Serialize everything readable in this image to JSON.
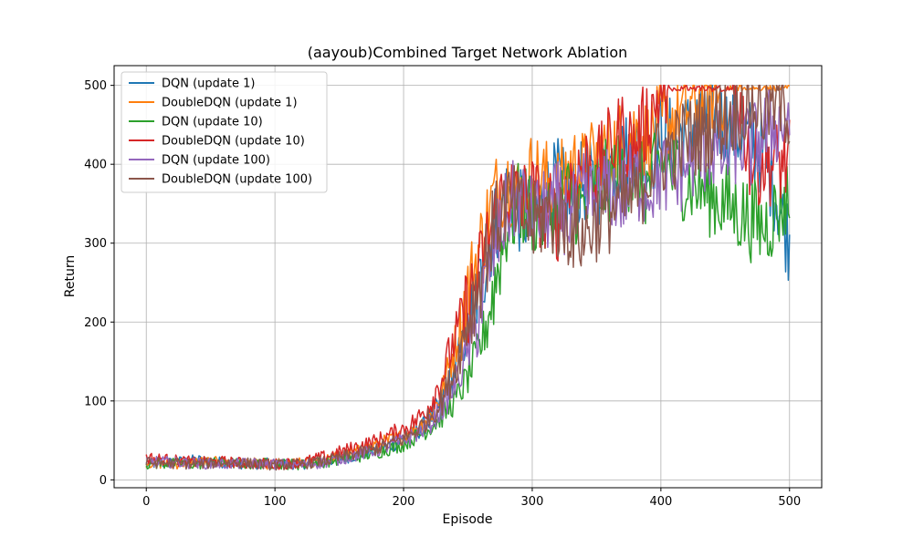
{
  "chart_data": {
    "type": "line",
    "title": "(aayoub)Combined Target Network Ablation",
    "xlabel": "Episode",
    "ylabel": "Return",
    "xlim": [
      -25,
      525
    ],
    "ylim": [
      -10,
      525
    ],
    "xticks": [
      0,
      100,
      200,
      300,
      400,
      500
    ],
    "yticks": [
      0,
      100,
      200,
      300,
      400,
      500
    ],
    "grid": true,
    "legend_position": "top-left",
    "series": [
      {
        "name": "DQN (update 1)",
        "color": "#1f77b4",
        "x": [
          0,
          20,
          40,
          60,
          80,
          100,
          120,
          140,
          160,
          180,
          200,
          210,
          220,
          230,
          240,
          250,
          260,
          270,
          280,
          290,
          300,
          310,
          320,
          330,
          340,
          350,
          360,
          370,
          380,
          390,
          400,
          410,
          420,
          430,
          440,
          450,
          460,
          470,
          480,
          490,
          500
        ],
        "values": [
          20,
          22,
          25,
          22,
          20,
          21,
          20,
          24,
          30,
          38,
          50,
          60,
          75,
          100,
          140,
          190,
          250,
          320,
          360,
          340,
          330,
          360,
          380,
          350,
          380,
          370,
          400,
          410,
          420,
          400,
          440,
          430,
          440,
          450,
          460,
          450,
          440,
          430,
          410,
          360,
          300
        ]
      },
      {
        "name": "DoubleDQN (update 1)",
        "color": "#ff7f0e",
        "x": [
          0,
          20,
          40,
          60,
          80,
          100,
          120,
          140,
          160,
          180,
          200,
          210,
          220,
          230,
          240,
          250,
          260,
          270,
          280,
          290,
          300,
          310,
          320,
          330,
          340,
          350,
          360,
          370,
          380,
          390,
          400,
          410,
          420,
          430,
          440,
          450,
          460,
          470,
          480,
          490,
          500
        ],
        "values": [
          22,
          20,
          23,
          22,
          21,
          20,
          21,
          25,
          34,
          45,
          55,
          65,
          80,
          110,
          170,
          240,
          300,
          360,
          380,
          360,
          390,
          380,
          370,
          400,
          390,
          410,
          420,
          430,
          440,
          430,
          450,
          460,
          470,
          480,
          490,
          495,
          500,
          500,
          500,
          500,
          500
        ]
      },
      {
        "name": "DQN (update 10)",
        "color": "#2ca02c",
        "x": [
          0,
          20,
          40,
          60,
          80,
          100,
          120,
          140,
          160,
          180,
          200,
          210,
          220,
          230,
          240,
          250,
          260,
          270,
          280,
          290,
          300,
          310,
          320,
          330,
          340,
          350,
          360,
          370,
          380,
          390,
          400,
          410,
          420,
          430,
          440,
          450,
          460,
          470,
          480,
          490,
          500
        ],
        "values": [
          20,
          21,
          20,
          22,
          20,
          21,
          19,
          23,
          28,
          35,
          45,
          55,
          65,
          80,
          100,
          130,
          170,
          240,
          320,
          350,
          340,
          330,
          350,
          360,
          340,
          370,
          380,
          390,
          380,
          370,
          400,
          390,
          380,
          370,
          360,
          350,
          340,
          330,
          320,
          340,
          360
        ]
      },
      {
        "name": "DoubleDQN (update 10)",
        "color": "#d62728",
        "x": [
          0,
          20,
          40,
          60,
          80,
          100,
          120,
          140,
          160,
          180,
          200,
          210,
          220,
          230,
          240,
          250,
          260,
          270,
          280,
          290,
          300,
          310,
          320,
          330,
          340,
          350,
          360,
          370,
          380,
          390,
          400,
          410,
          420,
          430,
          440,
          450,
          460,
          470,
          480,
          490,
          500
        ],
        "values": [
          28,
          25,
          22,
          23,
          21,
          20,
          22,
          30,
          40,
          50,
          65,
          75,
          95,
          130,
          180,
          220,
          270,
          330,
          370,
          350,
          360,
          340,
          330,
          380,
          400,
          390,
          420,
          440,
          420,
          460,
          490,
          500,
          500,
          500,
          500,
          500,
          490,
          402,
          402,
          402,
          402
        ]
      },
      {
        "name": "DQN (update 100)",
        "color": "#9467bd",
        "x": [
          0,
          20,
          40,
          60,
          80,
          100,
          120,
          140,
          160,
          180,
          200,
          210,
          220,
          230,
          240,
          250,
          260,
          270,
          280,
          290,
          300,
          310,
          320,
          330,
          340,
          350,
          360,
          370,
          380,
          390,
          400,
          410,
          420,
          430,
          440,
          450,
          460,
          470,
          480,
          490,
          500
        ],
        "values": [
          24,
          22,
          21,
          20,
          21,
          20,
          19,
          22,
          30,
          38,
          50,
          58,
          70,
          90,
          120,
          160,
          220,
          290,
          340,
          360,
          330,
          340,
          350,
          330,
          360,
          350,
          370,
          360,
          380,
          370,
          390,
          380,
          400,
          410,
          420,
          410,
          430,
          420,
          440,
          450,
          460
        ]
      },
      {
        "name": "DoubleDQN (update 100)",
        "color": "#8c564b",
        "x": [
          0,
          20,
          40,
          60,
          80,
          100,
          120,
          140,
          160,
          180,
          200,
          210,
          220,
          230,
          240,
          250,
          260,
          270,
          280,
          290,
          300,
          310,
          320,
          330,
          340,
          350,
          360,
          370,
          380,
          390,
          400,
          410,
          420,
          430,
          440,
          450,
          460,
          470,
          480,
          490,
          500
        ],
        "values": [
          22,
          21,
          20,
          22,
          21,
          19,
          20,
          24,
          32,
          40,
          52,
          62,
          78,
          100,
          140,
          200,
          260,
          320,
          350,
          340,
          320,
          340,
          330,
          320,
          310,
          330,
          340,
          350,
          360,
          390,
          410,
          420,
          430,
          440,
          450,
          460,
          470,
          480,
          470,
          480,
          470
        ]
      }
    ]
  }
}
